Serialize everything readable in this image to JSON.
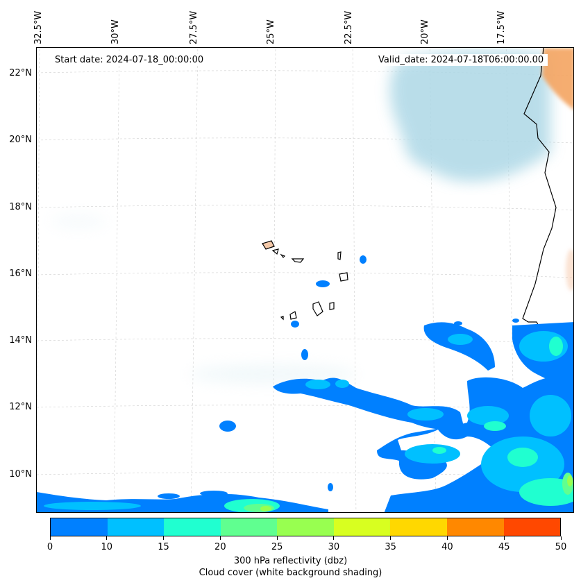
{
  "map": {
    "start_date_text": "Start date: 2024-07-18_00:00:00",
    "valid_date_text": "Valid_date: 2024-07-18T06:00:00.00",
    "longitude_labels": [
      "32.5°W",
      "30°W",
      "27.5°W",
      "25°W",
      "22.5°W",
      "20°W",
      "17.5°W"
    ],
    "latitude_labels": [
      "22°N",
      "20°N",
      "18°N",
      "16°N",
      "14°N",
      "12°N",
      "10°N"
    ],
    "gridlines": true,
    "coastline_color": "#000000",
    "cloud_color": "#add8e6",
    "land_heat_color": "#f4a460",
    "features": [
      "Cape Verde islands",
      "West African coastline"
    ]
  },
  "colorbar": {
    "ticks": [
      "0",
      "10",
      "15",
      "20",
      "25",
      "30",
      "35",
      "40",
      "45",
      "50"
    ],
    "colors": [
      "#0080ff",
      "#00c0ff",
      "#20ffd0",
      "#60ff90",
      "#98ff50",
      "#d8ff20",
      "#ffd800",
      "#ff8800",
      "#ff4800"
    ],
    "label_line1": "300 hPa reflectivity (dbz)",
    "label_line2": "Cloud cover (white background shading)"
  }
}
